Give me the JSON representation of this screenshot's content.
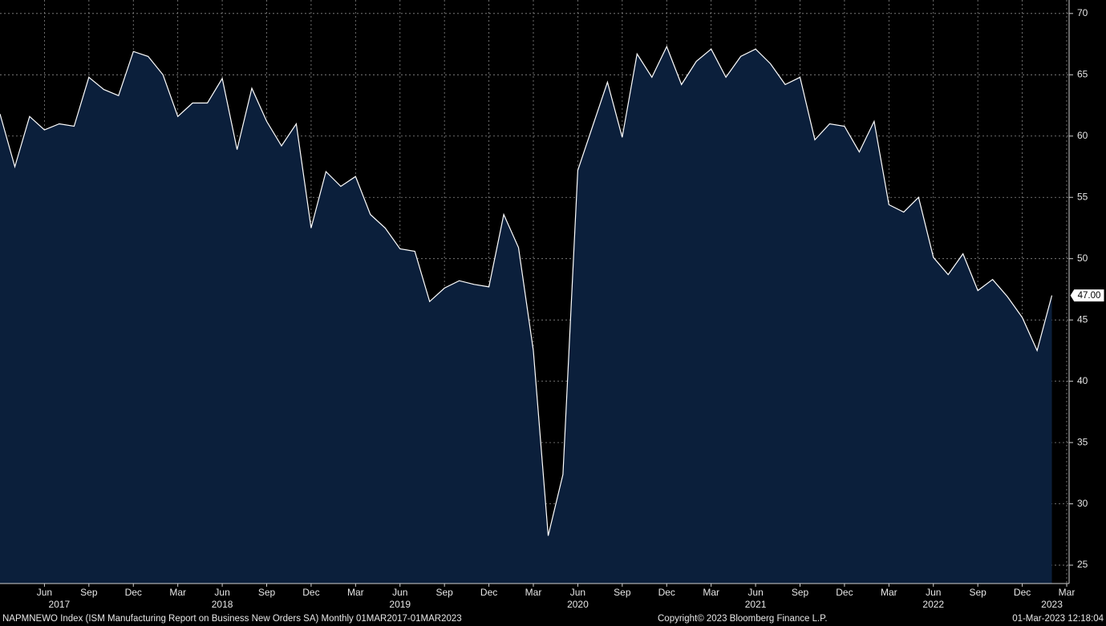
{
  "chart_data": {
    "type": "area",
    "title": "NAPMNEWO Index (ISM Manufacturing Report on Business New Orders SA)  Monthly 01MAR2017-01MAR2023",
    "annotations": [
      "Copyright© 2023 Bloomberg Finance L.P.",
      "01-Mar-2023 12:18:04"
    ],
    "x": [
      "2017-03",
      "2017-04",
      "2017-05",
      "2017-06",
      "2017-07",
      "2017-08",
      "2017-09",
      "2017-10",
      "2017-11",
      "2017-12",
      "2018-01",
      "2018-02",
      "2018-03",
      "2018-04",
      "2018-05",
      "2018-06",
      "2018-07",
      "2018-08",
      "2018-09",
      "2018-10",
      "2018-11",
      "2018-12",
      "2019-01",
      "2019-02",
      "2019-03",
      "2019-04",
      "2019-05",
      "2019-06",
      "2019-07",
      "2019-08",
      "2019-09",
      "2019-10",
      "2019-11",
      "2019-12",
      "2020-01",
      "2020-02",
      "2020-03",
      "2020-04",
      "2020-05",
      "2020-06",
      "2020-07",
      "2020-08",
      "2020-09",
      "2020-10",
      "2020-11",
      "2020-12",
      "2021-01",
      "2021-02",
      "2021-03",
      "2021-04",
      "2021-05",
      "2021-06",
      "2021-07",
      "2021-08",
      "2021-09",
      "2021-10",
      "2021-11",
      "2021-12",
      "2022-01",
      "2022-02",
      "2022-03",
      "2022-04",
      "2022-05",
      "2022-06",
      "2022-07",
      "2022-08",
      "2022-09",
      "2022-10",
      "2022-11",
      "2022-12",
      "2023-01",
      "2023-02"
    ],
    "series": [
      {
        "name": "NAPMNEWO Index",
        "color": "#ffffff",
        "fill": "#0b1f3b",
        "values": [
          61.8,
          57.5,
          61.6,
          60.5,
          61.0,
          60.8,
          64.8,
          63.8,
          63.3,
          66.9,
          66.5,
          65.0,
          61.6,
          62.7,
          62.7,
          64.7,
          58.9,
          63.9,
          61.2,
          59.2,
          61.0,
          52.5,
          57.1,
          55.9,
          56.7,
          53.6,
          52.5,
          50.8,
          50.6,
          46.5,
          47.6,
          48.2,
          47.9,
          47.7,
          53.6,
          50.9,
          42.5,
          27.4,
          32.4,
          57.2,
          60.8,
          64.4,
          59.9,
          66.7,
          64.8,
          67.3,
          64.2,
          66.1,
          67.1,
          64.8,
          66.5,
          67.1,
          65.9,
          64.2,
          64.8,
          59.7,
          61.0,
          60.8,
          58.7,
          61.2,
          54.4,
          53.8,
          55.0,
          50.1,
          48.7,
          50.4,
          47.4,
          48.3,
          46.9,
          45.2,
          42.5,
          47.0
        ],
        "last_value_label": "47.00"
      }
    ],
    "xlim": [
      "2017-03",
      "2023-03"
    ],
    "xticks": [
      {
        "value": "2017-06",
        "label": "Jun"
      },
      {
        "value": "2017-09",
        "label": "Sep"
      },
      {
        "value": "2017-12",
        "label": "Dec"
      },
      {
        "value": "2018-03",
        "label": "Mar"
      },
      {
        "value": "2018-06",
        "label": "Jun"
      },
      {
        "value": "2018-09",
        "label": "Sep"
      },
      {
        "value": "2018-12",
        "label": "Dec"
      },
      {
        "value": "2019-03",
        "label": "Mar"
      },
      {
        "value": "2019-06",
        "label": "Jun"
      },
      {
        "value": "2019-09",
        "label": "Sep"
      },
      {
        "value": "2019-12",
        "label": "Dec"
      },
      {
        "value": "2020-03",
        "label": "Mar"
      },
      {
        "value": "2020-06",
        "label": "Jun"
      },
      {
        "value": "2020-09",
        "label": "Sep"
      },
      {
        "value": "2020-12",
        "label": "Dec"
      },
      {
        "value": "2021-03",
        "label": "Mar"
      },
      {
        "value": "2021-06",
        "label": "Jun"
      },
      {
        "value": "2021-09",
        "label": "Sep"
      },
      {
        "value": "2021-12",
        "label": "Dec"
      },
      {
        "value": "2022-03",
        "label": "Mar"
      },
      {
        "value": "2022-06",
        "label": "Jun"
      },
      {
        "value": "2022-09",
        "label": "Sep"
      },
      {
        "value": "2022-12",
        "label": "Dec"
      },
      {
        "value": "2023-03",
        "label": "Mar"
      }
    ],
    "year_labels": [
      {
        "value": "2017-07",
        "label": "2017"
      },
      {
        "value": "2018-06",
        "label": "2018"
      },
      {
        "value": "2019-06",
        "label": "2019"
      },
      {
        "value": "2020-06",
        "label": "2020"
      },
      {
        "value": "2021-06",
        "label": "2021"
      },
      {
        "value": "2022-06",
        "label": "2022"
      },
      {
        "value": "2023-02",
        "label": "2023"
      }
    ],
    "ylim": [
      23.5,
      71.1
    ],
    "yticks": [
      25,
      30,
      35,
      40,
      45,
      50,
      55,
      60,
      65,
      70
    ],
    "grid": true
  }
}
